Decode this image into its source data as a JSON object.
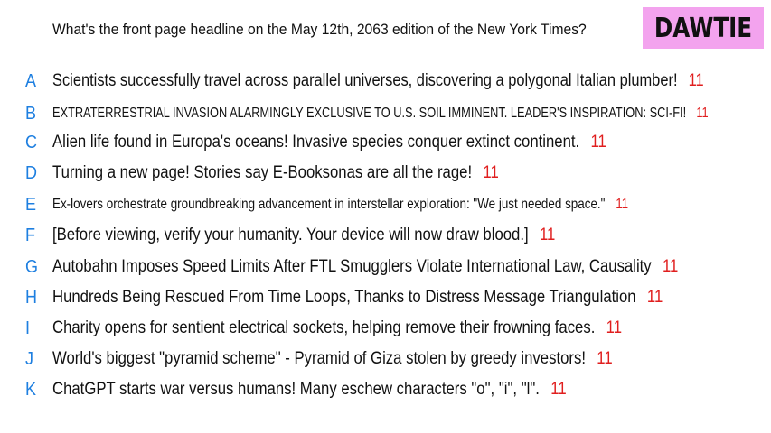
{
  "colors": {
    "letter": "#1e7fe0",
    "count": "#e01e1e",
    "badge_background": "#f3a3ee",
    "text": "#111111"
  },
  "question": "What's the front page headline on the May 12th, 2063 edition of the New York Times?",
  "badge": {
    "label": "DAWTIE"
  },
  "answers": [
    {
      "letter": "A",
      "text": "Scientists successfully travel across parallel universes, discovering a polygonal Italian plumber!",
      "count": "11"
    },
    {
      "letter": "B",
      "text": "EXTRATERRESTRIAL INVASION ALARMINGLY EXCLUSIVE TO U.S. SOIL IMMINENT. LEADER'S INSPIRATION: SCI-FI!",
      "count": "11"
    },
    {
      "letter": "C",
      "text": "Alien life found in Europa's oceans! Invasive species conquer extinct continent.",
      "count": "11"
    },
    {
      "letter": "D",
      "text": "Turning a new page! Stories say E-Booksonas are all the rage!",
      "count": "11"
    },
    {
      "letter": "E",
      "text": "Ex-lovers orchestrate groundbreaking advancement in interstellar exploration: \"We just needed space.\"",
      "count": "11"
    },
    {
      "letter": "F",
      "text": "[Before viewing, verify your humanity. Your device will now draw blood.]",
      "count": "11"
    },
    {
      "letter": "G",
      "text": "Autobahn Imposes Speed Limits After FTL Smugglers Violate International Law, Causality",
      "count": "11"
    },
    {
      "letter": "H",
      "text": "Hundreds Being Rescued From Time Loops, Thanks to Distress Message Triangulation",
      "count": "11"
    },
    {
      "letter": "I",
      "text": "Charity opens for sentient electrical sockets, helping remove their frowning faces.",
      "count": "11"
    },
    {
      "letter": "J",
      "text": "World's biggest \"pyramid scheme\" - Pyramid of Giza stolen by greedy investors!",
      "count": "11"
    },
    {
      "letter": "K",
      "text": "ChatGPT starts war versus humans! Many eschew characters \"o\", \"i\", \"l\".",
      "count": "11"
    }
  ]
}
